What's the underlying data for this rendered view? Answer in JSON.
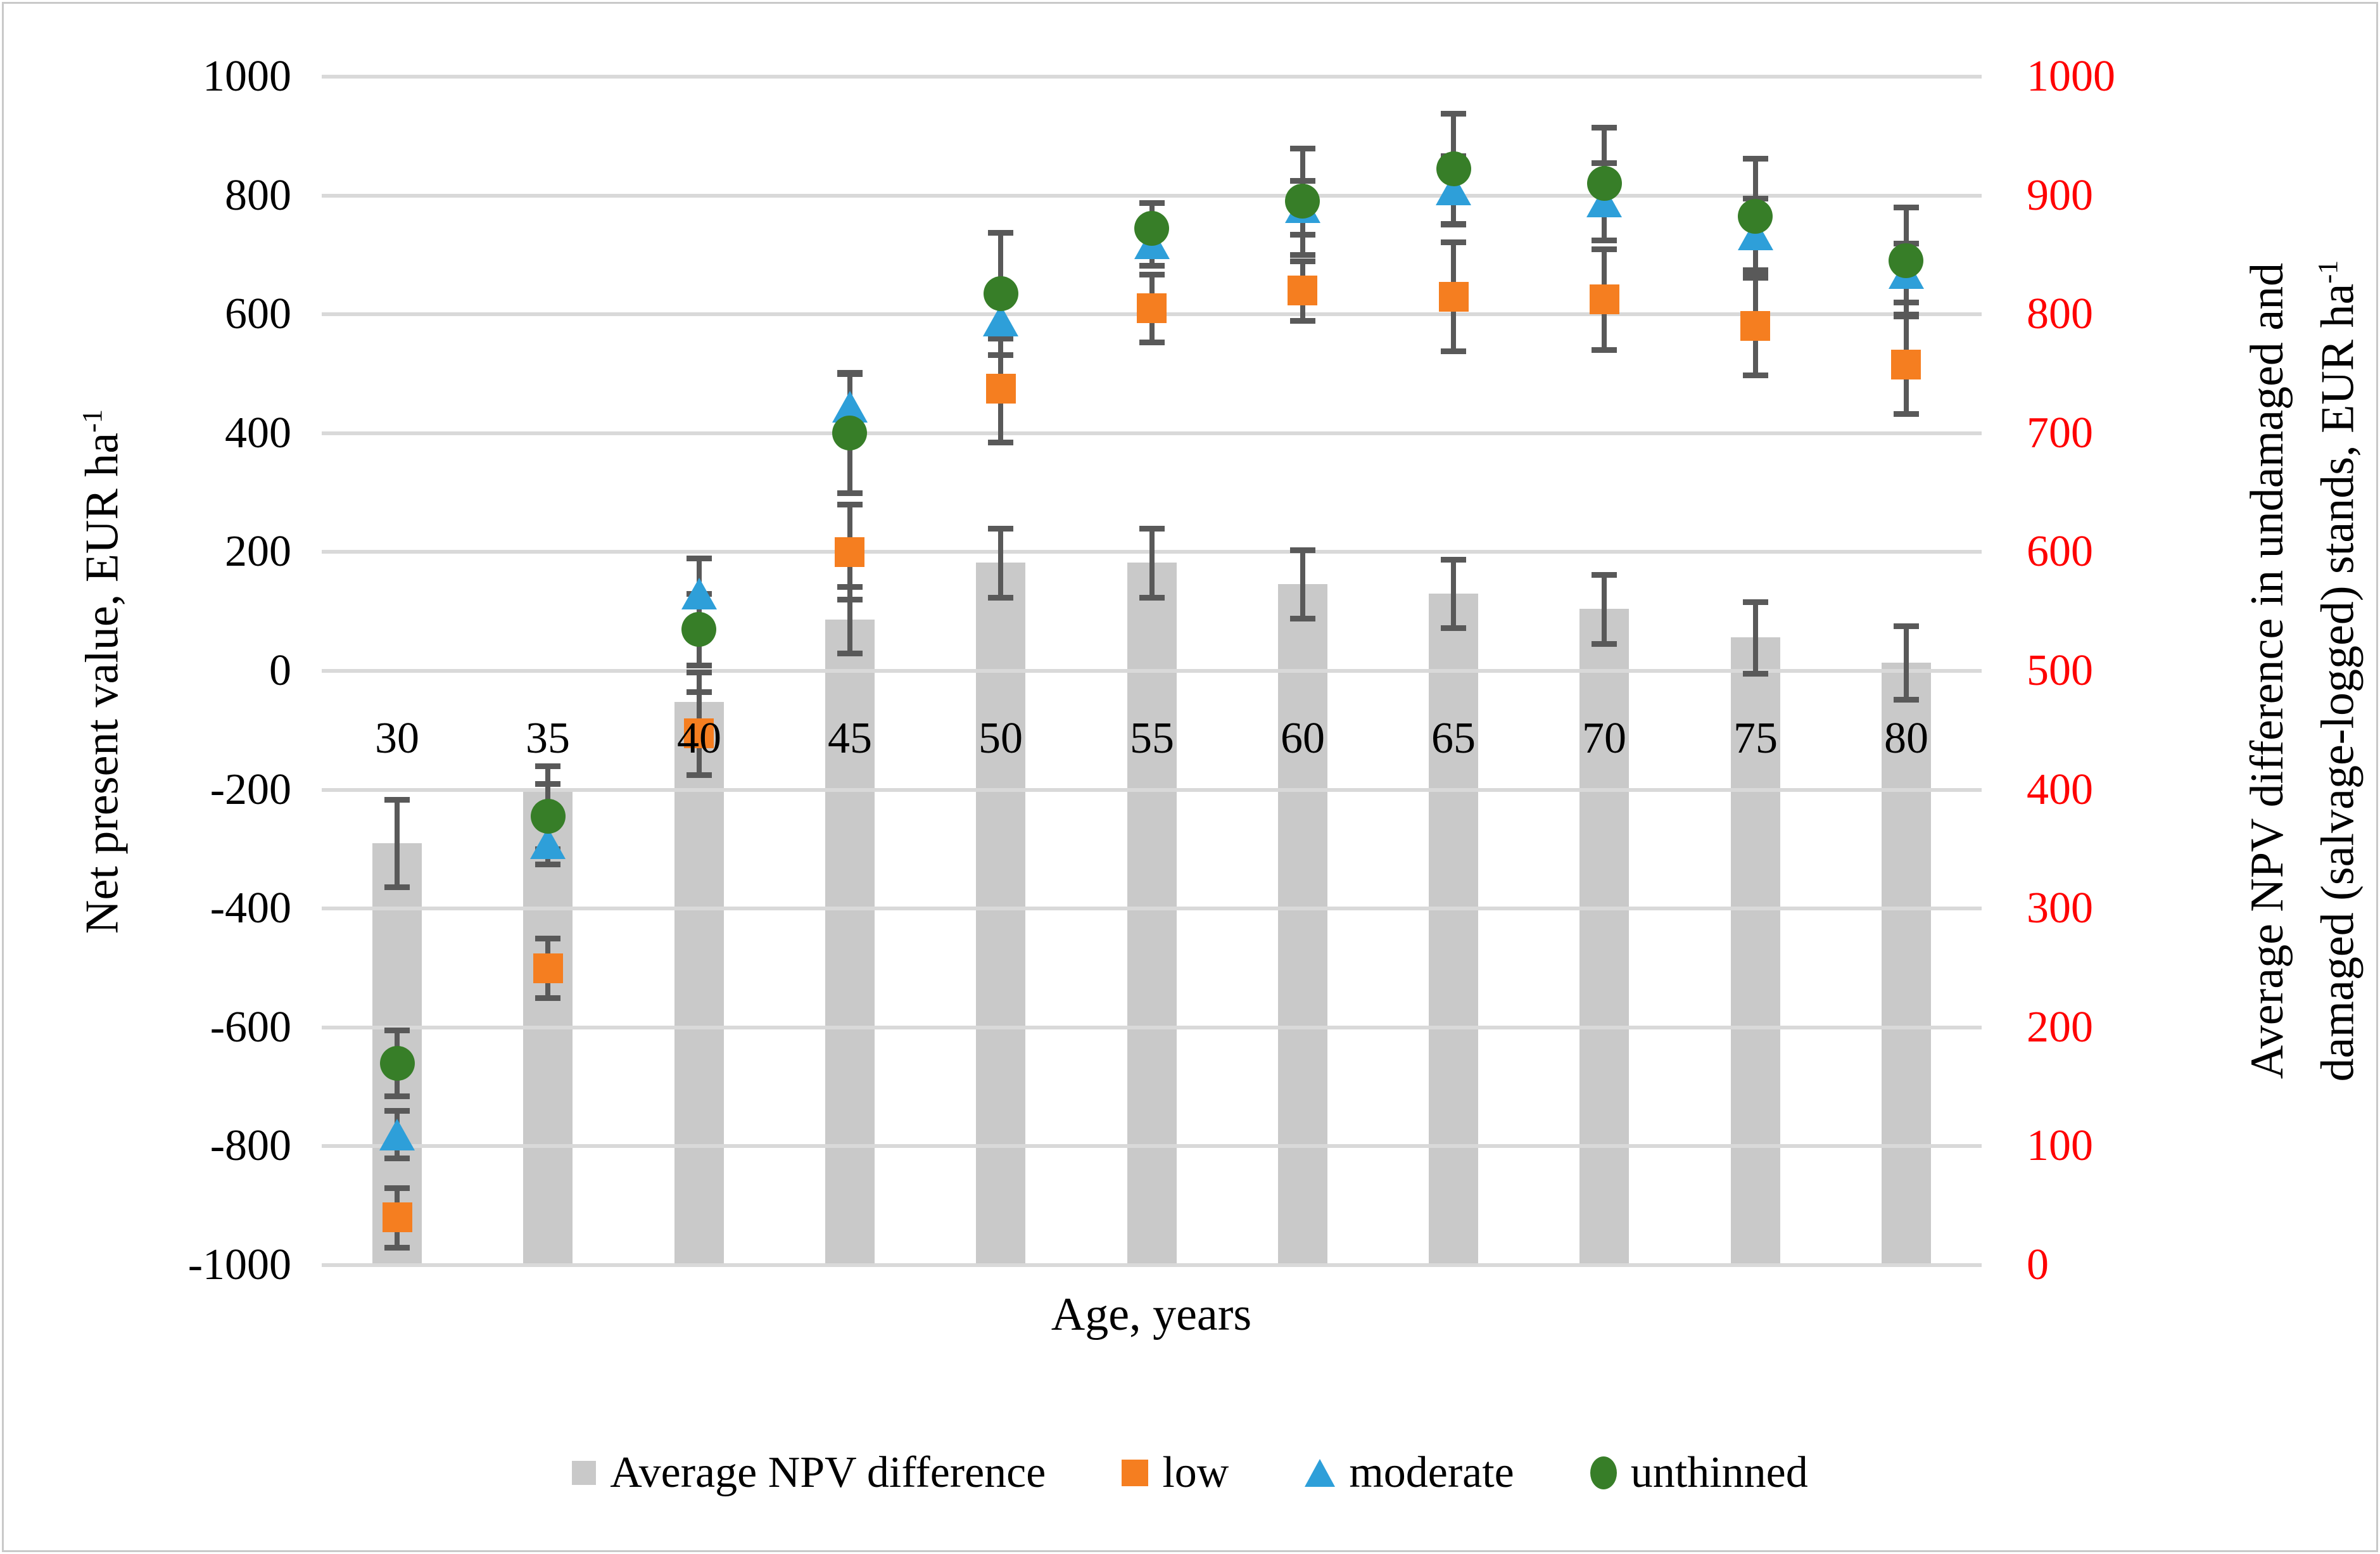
{
  "figure_title": "",
  "left_axis": {
    "title": {
      "text": "Net present value, EUR ha",
      "sup": "-1"
    },
    "min": -1000,
    "max": 1000,
    "step": 200,
    "tick_labels": [
      "1000",
      "800",
      "600",
      "400",
      "200",
      "0",
      "-200",
      "-400",
      "-600",
      "-800",
      "-1000"
    ]
  },
  "right_axis": {
    "title_line1": {
      "text": "Average NPV difference in undamaged and"
    },
    "title_line2": {
      "text": "damaged (salvage-logged) stands, EUR ha",
      "sup": "-1"
    },
    "min": 0,
    "max": 1000,
    "step": 100,
    "tick_labels": [
      "1000",
      "900",
      "800",
      "700",
      "600",
      "500",
      "400",
      "300",
      "200",
      "100",
      "0"
    ],
    "label_color": "#ff0000"
  },
  "x_axis": {
    "title": "Age, years",
    "categories": [
      "30",
      "35",
      "40",
      "45",
      "50",
      "55",
      "60",
      "65",
      "70",
      "75",
      "80"
    ]
  },
  "legend": {
    "items": [
      {
        "label": "Average NPV difference",
        "swatch": "bar-square",
        "color": "#c9c9c9"
      },
      {
        "label": "low",
        "swatch": "square",
        "color": "#f57e20"
      },
      {
        "label": "moderate",
        "swatch": "triangle",
        "color": "#2e9fd9"
      },
      {
        "label": "unthinned",
        "swatch": "circle",
        "color": "#377e28"
      }
    ]
  },
  "chart_data": {
    "type": "bar",
    "subtype": "combo-bar-with-scatter-markers-and-error-bars",
    "title": "",
    "xlabel": "Age, years",
    "ylabel_left": "Net present value, EUR ha-1",
    "ylabel_right": "Average NPV difference in undamaged and damaged (salvage-logged) stands, EUR ha-1",
    "grid": true,
    "legend_position": "bottom",
    "categories": [
      30,
      35,
      40,
      45,
      50,
      55,
      60,
      65,
      70,
      75,
      80
    ],
    "left_axis_range": [
      -1000,
      1000
    ],
    "right_axis_range": [
      0,
      1000
    ],
    "series": [
      {
        "name": "Average NPV difference",
        "type": "bar",
        "axis": "right",
        "color": "#c9c9c9",
        "values": [
          355,
          400,
          474,
          543,
          591,
          591,
          573,
          565,
          552,
          528,
          507
        ],
        "errors": [
          37,
          20,
          25,
          28,
          29,
          29,
          29,
          29,
          29,
          30,
          31
        ]
      },
      {
        "name": "low",
        "type": "scatter",
        "marker": "square",
        "axis": "left",
        "color": "#f57e20",
        "values": [
          -920,
          -500,
          -105,
          200,
          475,
          610,
          640,
          630,
          625,
          580,
          515
        ],
        "errors": [
          50,
          50,
          70,
          80,
          90,
          57,
          50,
          92,
          85,
          82,
          82
        ]
      },
      {
        "name": "moderate",
        "type": "scatter",
        "marker": "triangle",
        "axis": "left",
        "color": "#2e9fd9",
        "values": [
          -780,
          -290,
          130,
          445,
          590,
          720,
          780,
          810,
          790,
          735,
          670
        ],
        "errors": [
          40,
          35,
          60,
          57,
          30,
          38,
          45,
          57,
          65,
          60,
          50
        ]
      },
      {
        "name": "unthinned",
        "type": "scatter",
        "marker": "circle",
        "axis": "left",
        "color": "#377e28",
        "values": [
          -660,
          -245,
          70,
          400,
          635,
          745,
          790,
          845,
          820,
          765,
          690
        ],
        "errors": [
          55,
          55,
          60,
          100,
          103,
          43,
          90,
          93,
          95,
          97,
          90
        ]
      }
    ],
    "error_bar_color": "#595959",
    "gridline_color": "#d9d9d9"
  }
}
